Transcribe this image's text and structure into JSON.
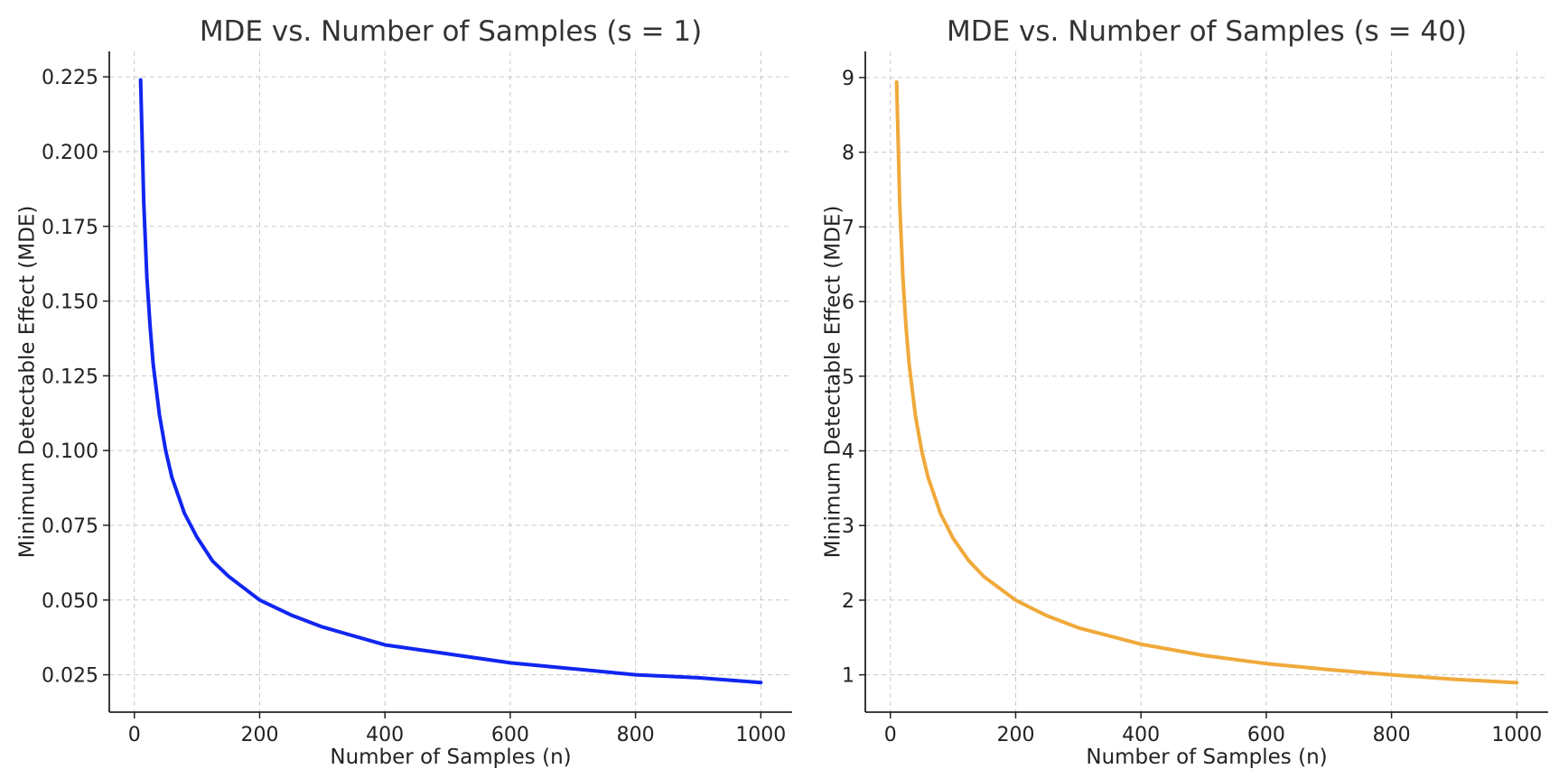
{
  "chart_data": [
    {
      "type": "line",
      "title": "MDE vs. Number of Samples (s = 1)",
      "xlabel": "Number of Samples (n)",
      "ylabel": "Minimum Detectable Effect (MDE)",
      "xlim": [
        -40,
        1050
      ],
      "ylim": [
        0.0125,
        0.2335
      ],
      "xticks": [
        0,
        200,
        400,
        600,
        800,
        1000
      ],
      "xtick_labels": [
        "0",
        "200",
        "400",
        "600",
        "800",
        "1000"
      ],
      "yticks": [
        0.025,
        0.05,
        0.075,
        0.1,
        0.125,
        0.15,
        0.175,
        0.2,
        0.225
      ],
      "ytick_labels": [
        "0.025",
        "0.050",
        "0.075",
        "0.100",
        "0.125",
        "0.150",
        "0.175",
        "0.200",
        "0.225"
      ],
      "grid": true,
      "series": [
        {
          "color": "#1026f0",
          "x": [
            10,
            15,
            20,
            25,
            30,
            40,
            50,
            60,
            80,
            100,
            125,
            150,
            200,
            250,
            300,
            400,
            500,
            600,
            700,
            800,
            900,
            1000
          ],
          "y": [
            0.224,
            0.183,
            0.158,
            0.142,
            0.129,
            0.112,
            0.1,
            0.091,
            0.079,
            0.071,
            0.063,
            0.058,
            0.05,
            0.045,
            0.041,
            0.035,
            0.032,
            0.029,
            0.027,
            0.025,
            0.024,
            0.0224
          ]
        }
      ]
    },
    {
      "type": "line",
      "title": "MDE vs. Number of Samples (s = 40)",
      "xlabel": "Number of Samples (n)",
      "ylabel": "Minimum Detectable Effect (MDE)",
      "xlim": [
        -40,
        1050
      ],
      "ylim": [
        0.5,
        9.35
      ],
      "xticks": [
        0,
        200,
        400,
        600,
        800,
        1000
      ],
      "xtick_labels": [
        "0",
        "200",
        "400",
        "600",
        "800",
        "1000"
      ],
      "yticks": [
        1,
        2,
        3,
        4,
        5,
        6,
        7,
        8,
        9
      ],
      "ytick_labels": [
        "1",
        "2",
        "3",
        "4",
        "5",
        "6",
        "7",
        "8",
        "9"
      ],
      "grid": true,
      "series": [
        {
          "color": "#f0a93a",
          "x": [
            10,
            15,
            20,
            25,
            30,
            40,
            50,
            60,
            80,
            100,
            125,
            150,
            200,
            250,
            300,
            400,
            500,
            600,
            700,
            800,
            900,
            1000
          ],
          "y": [
            8.94,
            7.3,
            6.32,
            5.66,
            5.16,
            4.47,
            4.0,
            3.65,
            3.16,
            2.83,
            2.53,
            2.31,
            2.0,
            1.79,
            1.63,
            1.41,
            1.26,
            1.15,
            1.07,
            1.0,
            0.94,
            0.894
          ]
        }
      ]
    }
  ]
}
